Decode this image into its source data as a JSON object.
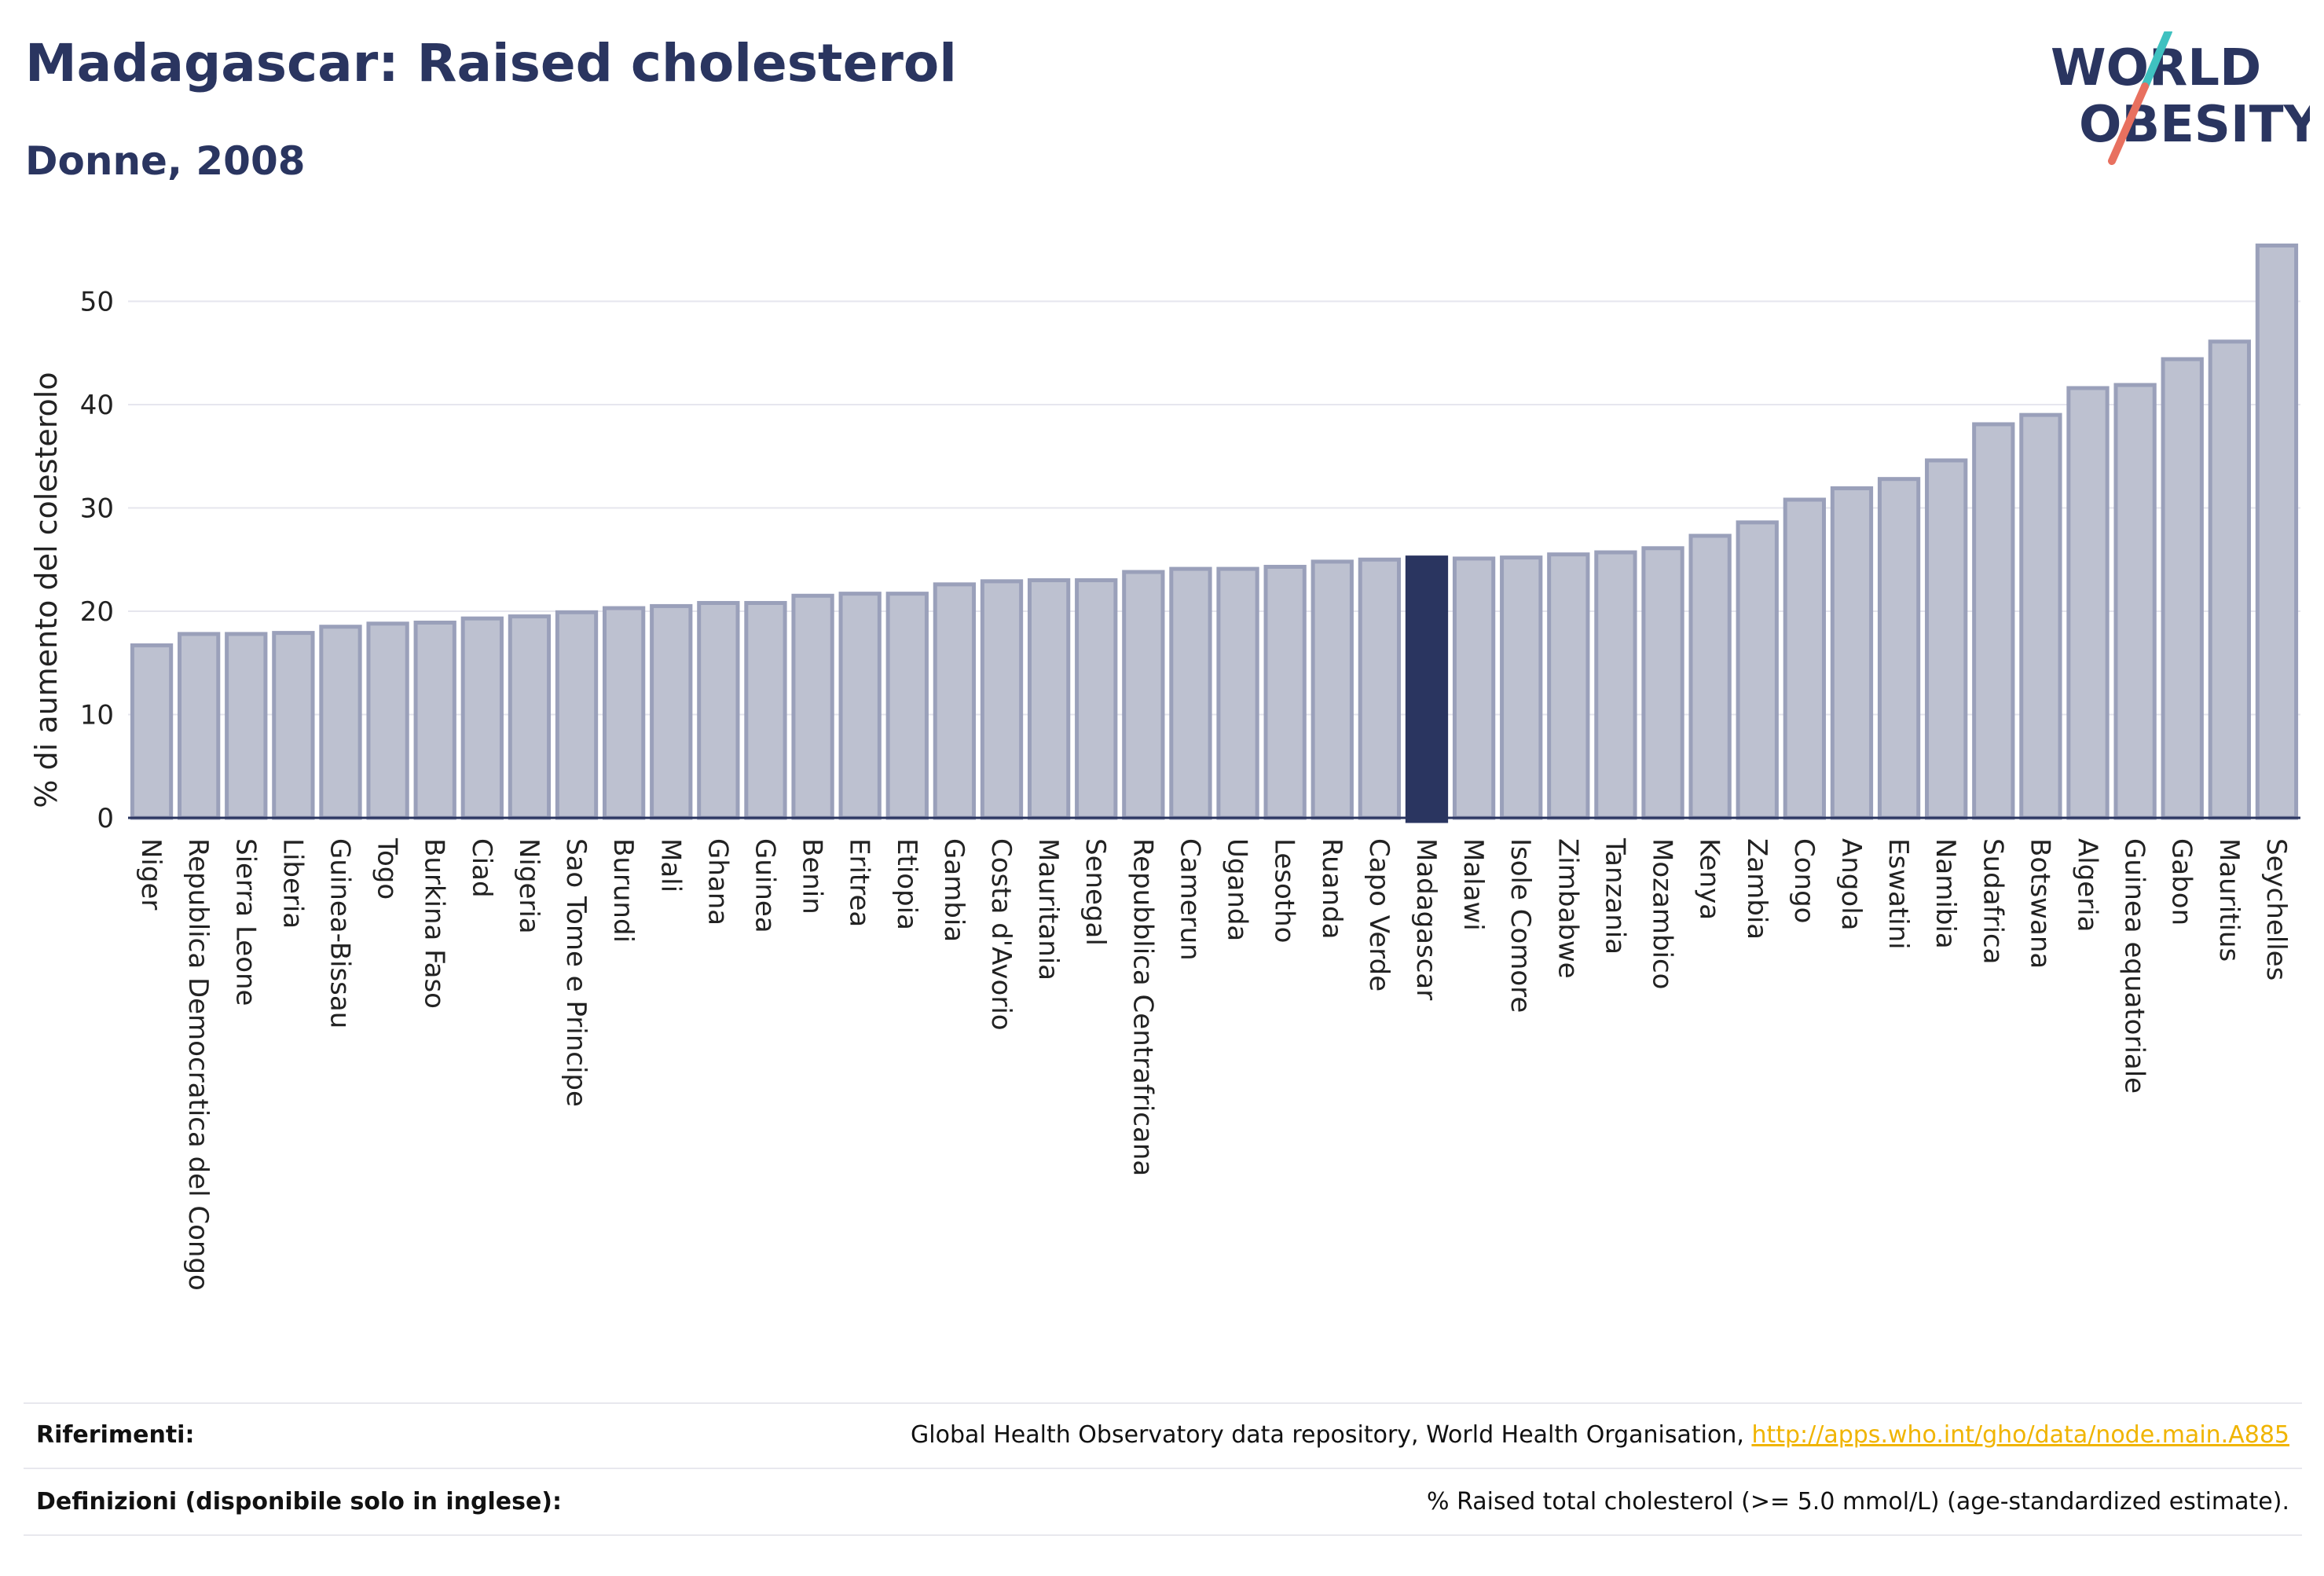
{
  "header": {
    "title": "Madagascar: Raised cholesterol",
    "subtitle": "Donne, 2008"
  },
  "logo": {
    "line1": "WORLD",
    "line2": "OBESITY",
    "icon": "world-obesity-logo-icon"
  },
  "colors": {
    "bar": "#bdc1d0",
    "bar_stroke": "#9aa0ba",
    "highlight": "#2a3560",
    "title": "#2a3560",
    "link": "#f0b400"
  },
  "chart_data": {
    "type": "bar",
    "ylabel": "% di aumento del colesterolo",
    "ylim": [
      0,
      57
    ],
    "yticks": [
      0,
      10,
      20,
      30,
      40,
      50
    ],
    "grid": true,
    "highlight": "Madagascar",
    "categories": [
      "Niger",
      "Republica Democratica del Congo",
      "Sierra Leone",
      "Liberia",
      "Guinea-Bissau",
      "Togo",
      "Burkina Faso",
      "Ciad",
      "Nigeria",
      "Sao Tome e Principe",
      "Burundi",
      "Mali",
      "Ghana",
      "Guinea",
      "Benin",
      "Eritrea",
      "Etiopia",
      "Gambia",
      "Costa d'Avorio",
      "Mauritania",
      "Senegal",
      "Repubblica Centrafricana",
      "Camerun",
      "Uganda",
      "Lesotho",
      "Ruanda",
      "Capo Verde",
      "Madagascar",
      "Malawi",
      "Isole Comore",
      "Zimbabwe",
      "Tanzania",
      "Mozambico",
      "Kenya",
      "Zambia",
      "Congo",
      "Angola",
      "Eswatini",
      "Namibia",
      "Sudafrica",
      "Botswana",
      "Algeria",
      "Guinea equatoriale",
      "Gabon",
      "Mauritius",
      "Seychelles"
    ],
    "values": [
      16.7,
      17.8,
      17.8,
      17.9,
      18.5,
      18.8,
      18.9,
      19.3,
      19.5,
      19.9,
      20.3,
      20.5,
      20.8,
      20.8,
      21.5,
      21.7,
      21.7,
      22.6,
      22.9,
      23.0,
      23.0,
      23.8,
      24.1,
      24.1,
      24.3,
      24.8,
      25.0,
      25.2,
      25.1,
      25.2,
      25.5,
      25.7,
      26.1,
      27.3,
      28.6,
      30.8,
      31.9,
      32.8,
      34.6,
      38.1,
      39.0,
      41.6,
      41.9,
      44.4,
      46.1,
      55.4
    ]
  },
  "footer": {
    "references_label": "Riferimenti:",
    "references_text": "Global Health Observatory data repository, World Health Organisation, ",
    "references_link": "http://apps.who.int/gho/data/node.main.A885",
    "definitions_label": "Definizioni (disponibile solo in inglese):",
    "definitions_text": "% Raised total cholesterol (>= 5.0 mmol/L) (age-standardized estimate)."
  }
}
